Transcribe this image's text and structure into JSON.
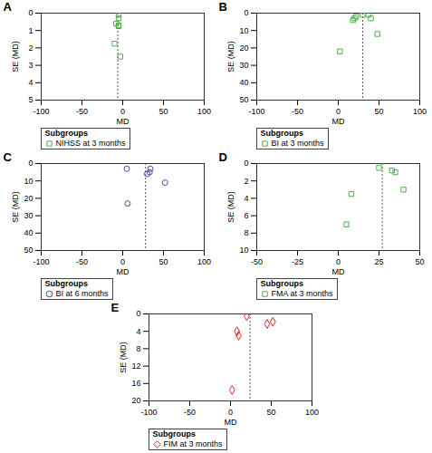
{
  "chart_data": [
    {
      "type": "scatter",
      "title": "A",
      "x_label": "MD",
      "y_label": "SE (MD)",
      "xlim": [
        -100,
        100
      ],
      "xticks": [
        -100,
        -50,
        0,
        50,
        100
      ],
      "ylim": [
        5,
        0
      ],
      "yticks": [
        0,
        1,
        2,
        3,
        4,
        5
      ],
      "reference_x": -6,
      "legend_title": "Subgroups",
      "series": [
        {
          "name": "NIHSS at 3 months",
          "color": "#4daf4a",
          "marker": "square",
          "x": [
            -5,
            -5,
            -8,
            -5,
            -5,
            -10,
            -3
          ],
          "values": [
            0.1,
            0.3,
            0.6,
            0.7,
            0.75,
            1.75,
            2.5
          ]
        }
      ]
    },
    {
      "type": "scatter",
      "title": "B",
      "x_label": "MD",
      "y_label": "SE (MD)",
      "xlim": [
        -100,
        100
      ],
      "xticks": [
        -100,
        -50,
        0,
        50,
        100
      ],
      "ylim": [
        50,
        0
      ],
      "yticks": [
        0,
        10,
        20,
        30,
        40,
        50
      ],
      "reference_x": 30,
      "legend_title": "Subgroups",
      "series": [
        {
          "name": "BI at 3 months",
          "color": "#4daf4a",
          "marker": "square",
          "x": [
            20,
            22,
            18,
            30,
            37,
            40,
            48,
            2
          ],
          "values": [
            3,
            2,
            4,
            1,
            1,
            3,
            12,
            22
          ]
        }
      ]
    },
    {
      "type": "scatter",
      "title": "C",
      "x_label": "MD",
      "y_label": "SE (MD)",
      "xlim": [
        -100,
        100
      ],
      "xticks": [
        -100,
        -50,
        0,
        50,
        100
      ],
      "ylim": [
        50,
        0
      ],
      "yticks": [
        0,
        10,
        20,
        30,
        40,
        50
      ],
      "reference_x": 28,
      "legend_title": "Subgroups",
      "series": [
        {
          "name": "BI at 6 months",
          "color": "#4a4aa8",
          "marker": "circle",
          "x": [
            5,
            34,
            33,
            30,
            52,
            6
          ],
          "values": [
            3,
            3,
            5,
            6,
            11,
            23
          ]
        }
      ]
    },
    {
      "type": "scatter",
      "title": "D",
      "x_label": "MD",
      "y_label": "SE (MD)",
      "xlim": [
        -50,
        50
      ],
      "xticks": [
        -50,
        -25,
        0,
        25,
        50
      ],
      "ylim": [
        10,
        0
      ],
      "yticks": [
        0,
        2,
        4,
        6,
        8,
        10
      ],
      "reference_x": 27,
      "legend_title": "Subgroups",
      "series": [
        {
          "name": "FMA at 3 months",
          "color": "#4daf4a",
          "marker": "square",
          "x": [
            25,
            33,
            35,
            40,
            8,
            5
          ],
          "values": [
            0.5,
            0.8,
            1,
            3,
            3.5,
            7
          ]
        }
      ]
    },
    {
      "type": "scatter",
      "title": "E",
      "x_label": "MD",
      "y_label": "SE (MD)",
      "xlim": [
        -100,
        100
      ],
      "xticks": [
        -100,
        -50,
        0,
        50,
        100
      ],
      "ylim": [
        20,
        0
      ],
      "yticks": [
        0,
        4,
        8,
        12,
        16,
        20
      ],
      "reference_x": 24,
      "legend_title": "Subgroups",
      "series": [
        {
          "name": "FIM at 3 months",
          "color": "#d62728",
          "marker": "diamond",
          "x": [
            20,
            52,
            45,
            8,
            10,
            2
          ],
          "values": [
            0.5,
            1.8,
            2.3,
            4,
            5,
            17.5
          ]
        }
      ]
    }
  ]
}
